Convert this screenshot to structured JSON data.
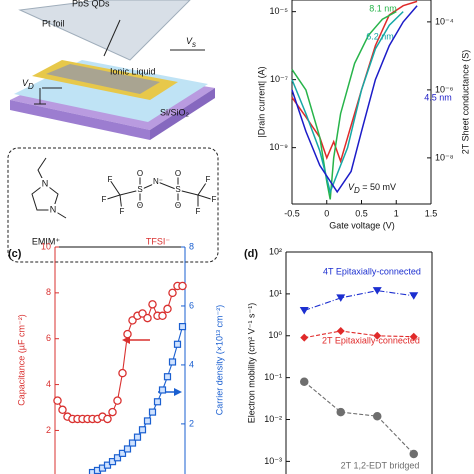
{
  "schematic": {
    "qds": "PbS QDs",
    "foil": "Pt foil",
    "vs": {
      "main": "V",
      "sub": "s"
    },
    "vd": {
      "main": "V",
      "sub": "D"
    },
    "liquid": "Ionic Liquid",
    "substrate": "Si/SiO₂",
    "emim_atoms": [
      "N",
      "N"
    ],
    "tfsi_atoms": [
      "F",
      "F",
      "F",
      "S",
      "O",
      "O",
      "N⁻",
      "S",
      "O",
      "O",
      "F",
      "F",
      "F"
    ],
    "emim": "EMIM⁺",
    "tfsi": "TFSI⁻"
  },
  "chart_data": [
    {
      "type": "line",
      "xlabel": "Gate voltage (V)",
      "ylabel": "|Drain current| (A)",
      "y2label": "2T Sheet conductance (S)",
      "ylog": true,
      "y2log": true,
      "xlim": [
        -0.5,
        1.5
      ],
      "xticks": [
        -0.5,
        0,
        0.5,
        1,
        1.5
      ],
      "ylim": [
        2.2e-11,
        2.2e-05
      ],
      "yticks": [
        {
          "value": 1e-05,
          "label": "10⁻⁵"
        },
        {
          "value": 1e-07,
          "label": "10⁻⁷"
        },
        {
          "value": 1e-09,
          "label": "10⁻⁹"
        }
      ],
      "y2lim": [
        4.4e-10,
        0.00044
      ],
      "y2ticks": [
        {
          "value": 0.0001,
          "label": "10⁻⁴"
        },
        {
          "value": 1e-06,
          "label": "10⁻⁶"
        },
        {
          "value": 1e-08,
          "label": "10⁻⁸"
        }
      ],
      "annotation": {
        "main": "V",
        "sub": "D",
        "rest": " = 50 mV"
      },
      "series": [
        {
          "color": "#e02a2a",
          "x": [
            -0.5,
            -0.3,
            -0.1,
            0.0,
            0.1,
            0.2,
            0.3,
            0.5,
            0.7,
            0.9,
            1.1,
            1.3
          ],
          "values": [
            3e-08,
            8e-09,
            2e-09,
            5e-10,
            1.5e-09,
            4e-10,
            2e-09,
            5e-08,
            1e-06,
            8e-06,
            1.5e-05,
            2e-05
          ]
        },
        {
          "name": "8.1 nm",
          "color": "#27b44a",
          "x": [
            -0.5,
            -0.3,
            -0.1,
            0.0,
            0.05,
            0.1,
            0.2,
            0.4,
            0.6,
            0.8,
            1.0
          ],
          "values": [
            2e-07,
            5e-08,
            2e-09,
            1e-10,
            3e-11,
            5e-10,
            1e-08,
            3e-07,
            2e-06,
            6e-06,
            1e-05
          ]
        },
        {
          "name": "6.2 nm",
          "color": "#15a8a6",
          "x": [
            -0.5,
            -0.3,
            -0.1,
            0.05,
            0.2,
            0.3,
            0.5,
            0.7,
            0.9,
            1.1
          ],
          "values": [
            1e-07,
            1e-08,
            8e-10,
            5e-11,
            3e-10,
            1e-09,
            5e-08,
            8e-07,
            4e-06,
            1e-05
          ]
        },
        {
          "name": "4.5 nm",
          "color": "#1c1cc8",
          "x": [
            -0.5,
            -0.3,
            -0.1,
            0.15,
            0.35,
            0.5,
            0.7,
            0.9,
            1.1,
            1.3
          ],
          "values": [
            5e-08,
            3e-09,
            3e-10,
            5e-11,
            2e-10,
            3e-09,
            1e-07,
            1e-06,
            5e-06,
            1.5e-05
          ]
        }
      ]
    },
    {
      "type": "line",
      "panel_label": "(c)",
      "ylabel": "Capacitance (µF cm⁻²)",
      "y2label": "Carrier density (×10¹³ cm⁻²)",
      "categories": [
        null,
        null,
        null,
        null,
        null,
        null,
        null,
        null,
        null,
        null,
        null,
        null,
        null,
        null,
        null,
        null,
        null,
        null,
        null,
        null,
        null,
        null,
        null,
        null,
        null,
        null
      ],
      "ylim": [
        0.1,
        10
      ],
      "yticks": [
        2,
        4,
        6,
        8,
        10
      ],
      "y2lim": [
        0.3,
        8
      ],
      "y2ticks": [
        2,
        4,
        6,
        8
      ],
      "series": [
        {
          "color": "#d9302f",
          "marker": "circle",
          "values": [
            3.3,
            2.9,
            2.6,
            2.5,
            2.5,
            2.5,
            2.5,
            2.5,
            2.5,
            2.6,
            2.5,
            2.8,
            3.3,
            4.5,
            6.2,
            6.8,
            7.0,
            7.1,
            6.9,
            7.5,
            7.0,
            7.0,
            7.3,
            8.0,
            8.3,
            8.3
          ]
        },
        {
          "color": "#1a5fd0",
          "marker": "square",
          "axis": "y2",
          "values": [
            null,
            null,
            null,
            null,
            null,
            null,
            null,
            0.35,
            0.42,
            0.5,
            0.6,
            0.72,
            0.85,
            1.0,
            1.15,
            1.35,
            1.55,
            1.8,
            2.1,
            2.4,
            2.75,
            3.15,
            3.6,
            4.1,
            4.7,
            5.3
          ]
        }
      ]
    },
    {
      "type": "line",
      "panel_label": "(d)",
      "ylabel": "Electron mobility (cm² V⁻¹ s⁻¹)",
      "ylog": true,
      "categories": [
        null,
        null,
        null,
        null
      ],
      "ylim": [
        0.0005,
        100
      ],
      "yticks": [
        {
          "value": 0.001,
          "label": "10⁻³"
        },
        {
          "value": 0.01,
          "label": "10⁻²"
        },
        {
          "value": 0.1,
          "label": "10⁻¹"
        },
        {
          "value": 1,
          "label": "10⁰"
        },
        {
          "value": 10,
          "label": "10¹"
        },
        {
          "value": 100,
          "label": "10²"
        }
      ],
      "series": [
        {
          "name": "4T Epitaxially-connected",
          "color": "#1c2fd0",
          "marker": "triangle",
          "dash": "6 2 1 2",
          "values": [
            4,
            8,
            12,
            9
          ]
        },
        {
          "name": "2T Epitaxially-connected",
          "color": "#e02a2a",
          "marker": "diamond",
          "dash": "4 2",
          "values": [
            0.9,
            1.3,
            1.0,
            0.95
          ]
        },
        {
          "name": "2T 1,2-EDT bridged",
          "color": "#6e6e6e",
          "marker": "circle",
          "dash": "4 2",
          "values": [
            0.08,
            0.015,
            0.012,
            0.0015
          ]
        }
      ]
    }
  ]
}
